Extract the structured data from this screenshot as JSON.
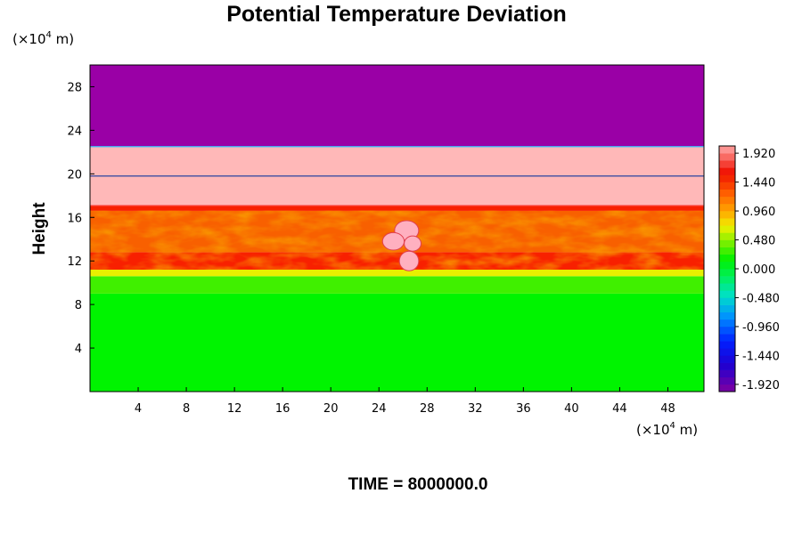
{
  "chart_data": {
    "type": "heatmap",
    "title": "Potential Temperature Deviation",
    "ylabel": "Height",
    "x_unit": {
      "prefix": "(×10",
      "exp": "4",
      "suffix": " m)"
    },
    "y_unit": {
      "prefix": "(×10",
      "exp": "4",
      "suffix": " m)"
    },
    "xlim": [
      0,
      51
    ],
    "ylim": [
      0,
      30
    ],
    "x_ticks": [
      4,
      8,
      12,
      16,
      20,
      24,
      28,
      32,
      36,
      40,
      44,
      48
    ],
    "y_ticks": [
      4,
      8,
      12,
      16,
      20,
      24,
      28
    ],
    "colorbar": {
      "min": -2.04,
      "max": 2.04,
      "ticks": [
        "1.920",
        "1.440",
        "0.960",
        "0.480",
        "0.000",
        "-0.480",
        "-0.960",
        "-1.440",
        "-1.920"
      ],
      "tick_values": [
        1.92,
        1.44,
        0.96,
        0.48,
        0.0,
        -0.48,
        -0.96,
        -1.44,
        -1.92
      ]
    },
    "layers": [
      {
        "y0": 0,
        "y1": 9,
        "value": 0.1,
        "color": "#00f400"
      },
      {
        "y0": 9,
        "y1": 10.6,
        "value": 0.35,
        "color": "#40f000"
      },
      {
        "y0": 10.6,
        "y1": 11.2,
        "value": 0.75,
        "color": "#e8f000"
      },
      {
        "y0": 11.2,
        "y1": 12.8,
        "value": 1.5,
        "color": "#f82000"
      },
      {
        "y0": 12.8,
        "y1": 16.6,
        "value": 1.2,
        "color": "#f86000"
      },
      {
        "y0": 16.6,
        "y1": 17.1,
        "value": 1.55,
        "color": "#f82000"
      },
      {
        "y0": 17.1,
        "y1": 22.5,
        "value": 1.95,
        "color": "#ffb8b8"
      },
      {
        "y0": 22.5,
        "y1": 30,
        "value": -2.0,
        "color": "#9a00a6"
      }
    ]
  },
  "footer": "TIME = 8000000.0"
}
